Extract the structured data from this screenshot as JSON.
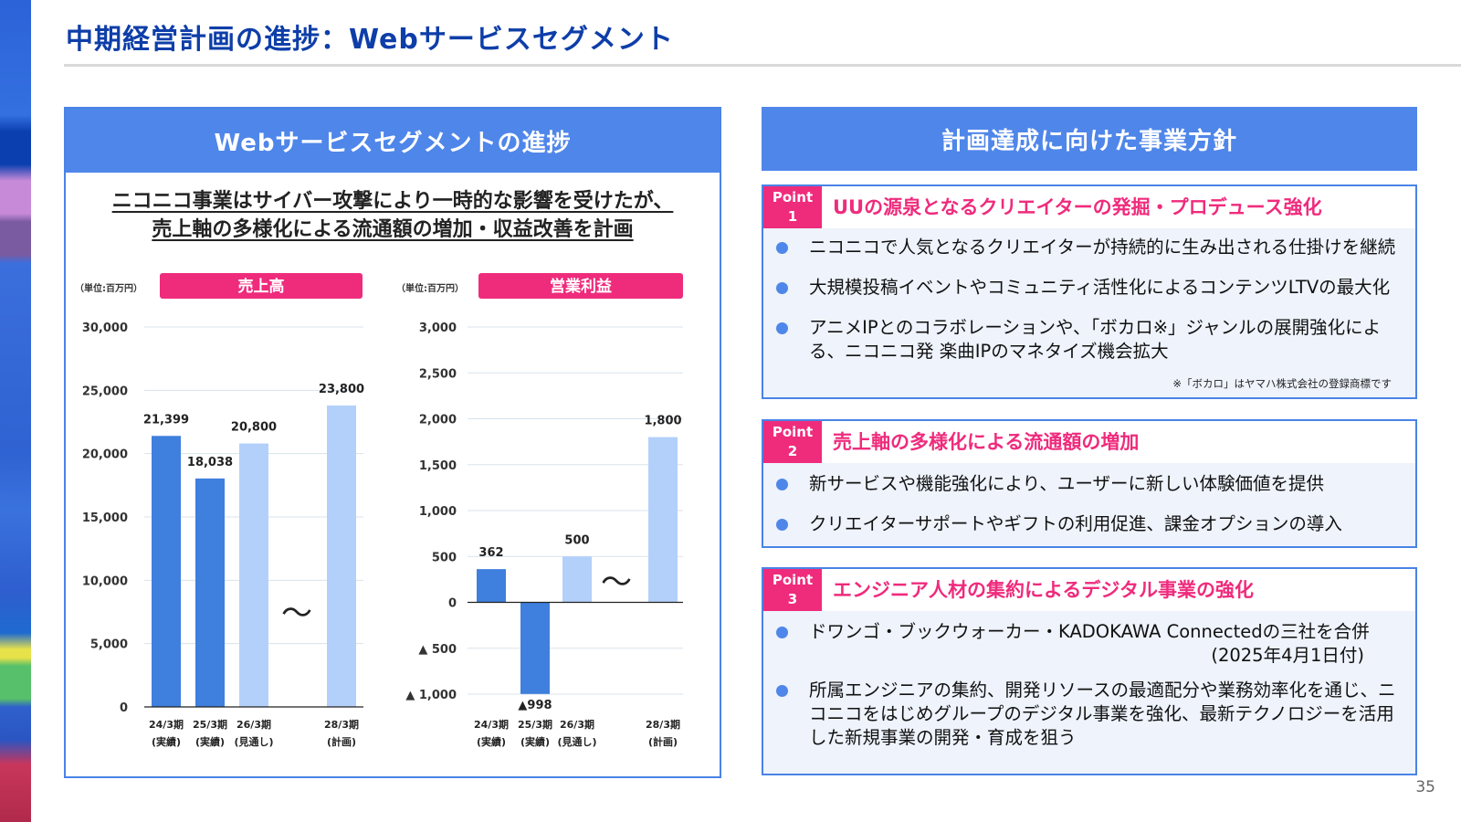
{
  "page": {
    "title": "中期経営計画の進捗：Webサービスセグメント",
    "page_number": "35"
  },
  "left": {
    "header": "Webサービスセグメントの進捗",
    "headline_line1": "ニコニコ事業はサイバー攻撃により一時的な影響を受けたが、",
    "headline_line2": "売上軸の多様化による流通額の増加・収益改善を計画"
  },
  "chart_data": [
    {
      "type": "bar",
      "title": "売上高",
      "unit_label": "（単位:百万円）",
      "categories": [
        "24/3期 (実績)",
        "25/3期 (実績)",
        "26/3期 (見通し)",
        "28/3期 (計画)"
      ],
      "category_lines": [
        [
          "24/3期",
          "(実績)"
        ],
        [
          "25/3期",
          "(実績)"
        ],
        [
          "26/3期",
          "(見通し)"
        ],
        [
          "28/3期",
          "(計画)"
        ]
      ],
      "values": [
        21399,
        18038,
        20800,
        23800
      ],
      "value_labels": [
        "21,399",
        "18,038",
        "20,800",
        "23,800"
      ],
      "colors": [
        "#3f7fdd",
        "#3f7fdd",
        "#b3d0fb",
        "#b3d0fb"
      ],
      "ylim": [
        0,
        30000
      ],
      "yticks": [
        0,
        5000,
        10000,
        15000,
        20000,
        25000,
        30000
      ],
      "ytick_labels": [
        "0",
        "5,000",
        "10,000",
        "15,000",
        "20,000",
        "25,000",
        "30,000"
      ],
      "break_symbol": "〜",
      "grid": true
    },
    {
      "type": "bar",
      "title": "営業利益",
      "unit_label": "（単位:百万円）",
      "categories": [
        "24/3期 (実績)",
        "25/3期 (実績)",
        "26/3期 (見通し)",
        "28/3期 (計画)"
      ],
      "category_lines": [
        [
          "24/3期",
          "(実績)"
        ],
        [
          "25/3期",
          "(実績)"
        ],
        [
          "26/3期",
          "(見通し)"
        ],
        [
          "28/3期",
          "(計画)"
        ]
      ],
      "values": [
        362,
        -998,
        500,
        1800
      ],
      "value_labels": [
        "362",
        "▲998",
        "500",
        "1,800"
      ],
      "colors": [
        "#3f7fdd",
        "#3f7fdd",
        "#b3d0fb",
        "#b3d0fb"
      ],
      "ylim": [
        -1000,
        3000
      ],
      "yticks": [
        -1000,
        -500,
        0,
        500,
        1000,
        1500,
        2000,
        2500,
        3000
      ],
      "ytick_labels": [
        "▲ 1,000",
        "▲ 500",
        "0",
        "500",
        "1,000",
        "1,500",
        "2,000",
        "2,500",
        "3,000"
      ],
      "break_symbol": "〜",
      "grid": true
    }
  ],
  "right": {
    "header": "計画達成に向けた事業方針",
    "points": [
      {
        "badge_line1": "Point",
        "badge_line2": "1",
        "title": "UUの源泉となるクリエイターの発掘・プロデュース強化",
        "bullets": [
          "ニコニコで人気となるクリエイターが持続的に生み出される仕掛けを継続",
          "大規模投稿イベントやコミュニティ活性化によるコンテンツLTVの最大化",
          "アニメIPとのコラボレーションや、「ボカロ※」ジャンルの展開強化による、ニコニコ発 楽曲IPのマネタイズ機会拡大"
        ],
        "note": "※「ボカロ」はヤマハ株式会社の登録商標です"
      },
      {
        "badge_line1": "Point",
        "badge_line2": "2",
        "title": "売上軸の多様化による流通額の増加",
        "bullets": [
          "新サービスや機能強化により、ユーザーに新しい体験価値を提供",
          "クリエイターサポートやギフトの利用促進、課金オプションの導入"
        ]
      },
      {
        "badge_line1": "Point",
        "badge_line2": "3",
        "title": "エンジニア人材の集約によるデジタル事業の強化",
        "bullets": [
          "ドワンゴ・ブックウォーカー・KADOKAWA Connectedの三社を合併",
          "所属エンジニアの集約、開発リソースの最適配分や業務効率化を通じ、ニコニコをはじめグループのデジタル事業を強化、最新テクノロジーを活用した新規事業の開発・育成を狙う"
        ],
        "bullet_sub": "(2025年4月1日付)"
      }
    ]
  },
  "colors": {
    "brand_blue": "#4f86e9",
    "title_blue": "#0e3ea8",
    "accent_pink": "#ef2b7c",
    "actual_bar": "#3f7fdd",
    "plan_bar": "#b3d0fb"
  }
}
